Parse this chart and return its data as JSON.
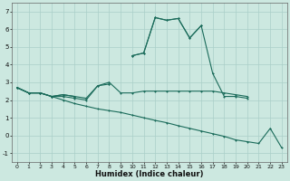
{
  "xlabel": "Humidex (Indice chaleur)",
  "background_color": "#cce8e0",
  "grid_color": "#aacfc8",
  "line_color": "#1a6b5a",
  "x_values": [
    0,
    1,
    2,
    3,
    4,
    5,
    6,
    7,
    8,
    9,
    10,
    11,
    12,
    13,
    14,
    15,
    16,
    17,
    18,
    19,
    20,
    21,
    22,
    23
  ],
  "s1": [
    2.7,
    2.4,
    2.4,
    2.2,
    2.3,
    2.2,
    null,
    null,
    2.9,
    null,
    4.5,
    4.65,
    6.65,
    6.5,
    6.6,
    5.5,
    6.2,
    null,
    null,
    null,
    null,
    null,
    null,
    null
  ],
  "s2": [
    2.7,
    2.4,
    2.4,
    2.2,
    2.3,
    2.2,
    2.1,
    2.8,
    2.9,
    null,
    4.5,
    4.65,
    6.65,
    6.5,
    6.6,
    5.5,
    6.2,
    3.5,
    2.2,
    2.2,
    2.1,
    null,
    null,
    null
  ],
  "s3": [
    2.7,
    2.4,
    2.4,
    2.2,
    2.2,
    2.1,
    2.0,
    2.8,
    3.0,
    2.4,
    2.4,
    2.5,
    2.5,
    2.5,
    2.5,
    2.5,
    2.5,
    2.5,
    2.4,
    2.3,
    2.2,
    null,
    null,
    null
  ],
  "s4": [
    2.7,
    2.4,
    2.4,
    2.2,
    2.0,
    1.8,
    1.65,
    1.5,
    1.4,
    1.3,
    1.15,
    1.0,
    0.85,
    0.72,
    0.55,
    0.4,
    0.25,
    0.1,
    -0.05,
    -0.25,
    -0.35,
    -0.45,
    0.4,
    -0.7
  ],
  "ylim": [
    -1.5,
    7.5
  ],
  "xlim": [
    -0.5,
    23.5
  ],
  "yticks": [
    -1,
    0,
    1,
    2,
    3,
    4,
    5,
    6,
    7
  ],
  "xticks": [
    0,
    1,
    2,
    3,
    4,
    5,
    6,
    7,
    8,
    9,
    10,
    11,
    12,
    13,
    14,
    15,
    16,
    17,
    18,
    19,
    20,
    21,
    22,
    23
  ]
}
